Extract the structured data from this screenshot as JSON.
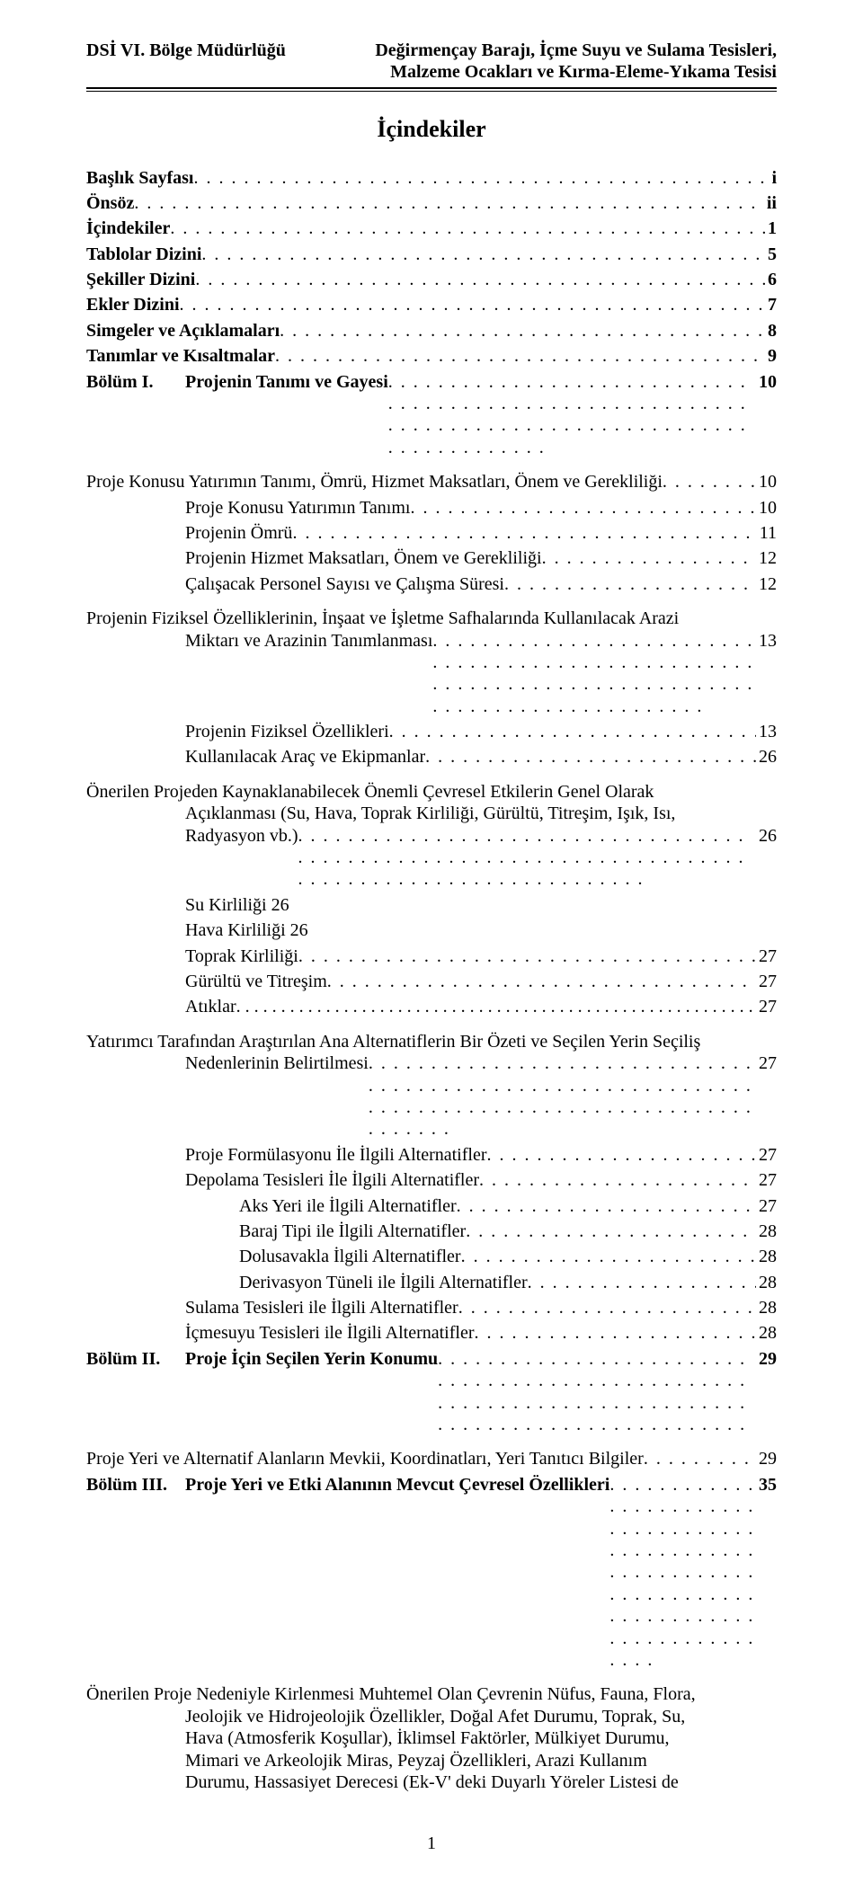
{
  "header": {
    "left": "DSİ VI. Bölge Müdürlüğü",
    "right_l1": "Değirmençay Barajı, İçme Suyu ve Sulama Tesisleri,",
    "right_l2": "Malzeme Ocakları ve Kırma-Eleme-Yıkama Tesisi"
  },
  "title": "İçindekiler",
  "t": {
    "baslik": "Başlık Sayfası",
    "baslik_p": "i",
    "onsoz": "Önsöz",
    "onsoz_p": "ii",
    "icindekiler": "İçindekiler",
    "icindekiler_p": "1",
    "tablolar": "Tablolar Dizini",
    "tablolar_p": "5",
    "sekiller": "Şekiller Dizini",
    "sekiller_p": "6",
    "ekler": "Ekler Dizini",
    "ekler_p": "7",
    "simgeler": "Simgeler ve Açıklamaları",
    "simgeler_p": "8",
    "tanimlar": "Tanımlar ve Kısaltmalar",
    "tanimlar_p": "9",
    "b1_tag": "Bölüm I.",
    "b1_title": "Projenin Tanımı ve Gayesi",
    "b1_p": "10",
    "s1": "Proje Konusu Yatırımın Tanımı, Ömrü, Hizmet Maksatları, Önem ve Gerekliliği",
    "s1_p": "10",
    "s1a": "Proje Konusu Yatırımın Tanımı",
    "s1a_p": "10",
    "s1b": "Projenin Ömrü",
    "s1b_p": "11",
    "s1c": "Projenin Hizmet Maksatları, Önem ve Gerekliliği",
    "s1c_p": "12",
    "s1d": "Çalışacak Personel Sayısı ve Çalışma Süresi",
    "s1d_p": "12",
    "s2_l1": "Projenin Fiziksel Özelliklerinin, İnşaat ve İşletme Safhalarında Kullanılacak Arazi",
    "s2_l2": "Miktarı ve Arazinin Tanımlanması",
    "s2_p": "13",
    "s2a": "Projenin Fiziksel Özellikleri",
    "s2a_p": "13",
    "s2b": "Kullanılacak Araç ve Ekipmanlar",
    "s2b_p": "26",
    "s3_l1": "Önerilen Projeden Kaynaklanabilecek Önemli Çevresel Etkilerin Genel Olarak",
    "s3_l2": "Açıklanması (Su, Hava, Toprak Kirliliği, Gürültü, Titreşim, Işık, Isı,",
    "s3_l3": "Radyasyon vb.)",
    "s3_p": "26",
    "su": "Su Kirliliği 26",
    "hava": "Hava Kirliliği 26",
    "toprak": "Toprak Kirliliği",
    "toprak_p": "27",
    "gurultu": "Gürültü ve Titreşim",
    "gurultu_p": "27",
    "atiklar": "Atıklar",
    "atiklar_p": "27",
    "s4_l1": "Yatırımcı Tarafından Araştırılan Ana Alternatiflerin Bir Özeti ve Seçilen Yerin Seçiliş",
    "s4_l2": "Nedenlerinin Belirtilmesi",
    "s4_p": "27",
    "s4a": "Proje Formülasyonu İle İlgili Alternatifler",
    "s4a_p": "27",
    "s4b": "Depolama Tesisleri İle İlgili Alternatifler",
    "s4b_p": "27",
    "s4b1": "Aks Yeri ile İlgili Alternatifler",
    "s4b1_p": "27",
    "s4b2": "Baraj Tipi ile İlgili Alternatifler",
    "s4b2_p": "28",
    "s4b3": "Dolusavakla İlgili Alternatifler",
    "s4b3_p": "28",
    "s4b4": "Derivasyon Tüneli ile İlgili Alternatifler",
    "s4b4_p": "28",
    "s4c": "Sulama Tesisleri ile İlgili Alternatifler",
    "s4c_p": "28",
    "s4d": "İçmesuyu Tesisleri ile İlgili Alternatifler",
    "s4d_p": "28",
    "b2_tag": "Bölüm II.",
    "b2_title": "Proje İçin Seçilen Yerin Konumu",
    "b2_p": "29",
    "s5": "Proje Yeri ve Alternatif Alanların Mevkii, Koordinatları, Yeri Tanıtıcı Bilgiler",
    "s5_p": "29",
    "b3_tag": "Bölüm III.",
    "b3_title": "Proje Yeri ve Etki Alanının Mevcut Çevresel Özellikleri",
    "b3_p": "35",
    "para_l1": "Önerilen Proje Nedeniyle Kirlenmesi Muhtemel Olan Çevrenin Nüfus, Fauna, Flora,",
    "para_l2": "Jeolojik ve Hidrojeolojik Özellikler, Doğal Afet Durumu, Toprak, Su,",
    "para_l3": "Hava (Atmosferik Koşullar), İklimsel Faktörler, Mülkiyet Durumu,",
    "para_l4": "Mimari ve Arkeolojik Miras, Peyzaj Özellikleri, Arazi Kullanım",
    "para_l5": "Durumu, Hassasiyet Derecesi (Ek-V' deki Duyarlı Yöreler Listesi de"
  },
  "footer": "1"
}
